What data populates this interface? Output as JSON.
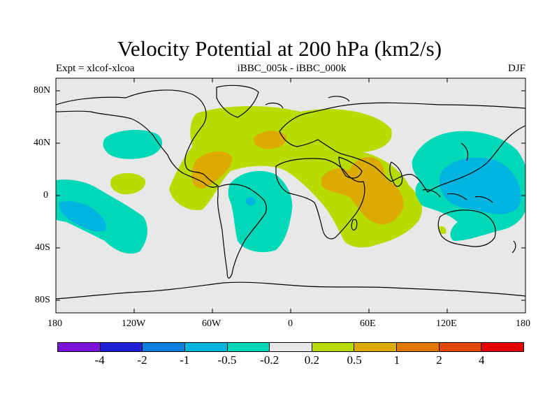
{
  "title": "Velocity Potential at 200 hPa (km2/s)",
  "subtitle_left": "Expt = xlcof-xlcoa",
  "subtitle_center": "iBBC_005k - iBBC_000k",
  "subtitle_right": "DJF",
  "y_ticks": [
    "80N",
    "40N",
    "0",
    "40S",
    "80S"
  ],
  "x_ticks": [
    "180",
    "120W",
    "60W",
    "0",
    "60E",
    "120E",
    "180"
  ],
  "colorbar": {
    "colors": [
      "#7b12d8",
      "#2020d6",
      "#0a7fe0",
      "#00b4e0",
      "#00d8b8",
      "#e8e8e8",
      "#b8dc00",
      "#dcaa00",
      "#e07800",
      "#e04800",
      "#e60000"
    ],
    "labels": [
      "-4",
      "-2",
      "-1",
      "-0.5",
      "-0.2",
      "0.2",
      "0.5",
      "1",
      "2",
      "4"
    ]
  },
  "colors": {
    "ocean_bg": "#e8e8e8",
    "coast": "#000000"
  }
}
